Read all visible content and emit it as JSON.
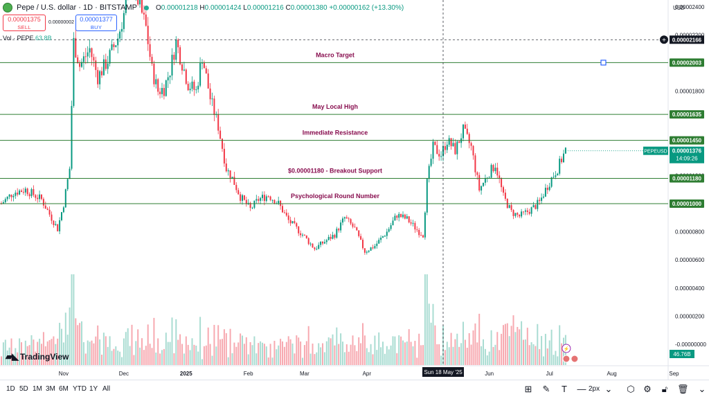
{
  "header": {
    "title": "Pepe / U.S. dollar · 1D · BITSTAMP",
    "ohlc": {
      "o_label": "O",
      "o": "0.00001218",
      "h_label": "H",
      "h": "0.00001424",
      "l_label": "L",
      "l": "0.00001216",
      "c_label": "C",
      "c": "0.00001380",
      "change": "+0.00000162 (+13.30%)"
    }
  },
  "trade": {
    "sell_price": "0.00001375",
    "sell_label": "SELL",
    "spread": "0.00000002",
    "buy_price": "0.00001377",
    "buy_label": "BUY"
  },
  "volume": {
    "label": "Vol · PEPE",
    "value": "63.8B",
    "scale_label": "46.76B"
  },
  "currency": "USD",
  "price_axis": [
    {
      "price": 2.6e-05,
      "label": "0.00002600"
    },
    {
      "price": 2.4e-05,
      "label": "0.00002400"
    },
    {
      "price": 2.2e-05,
      "label": "0.00002200"
    },
    {
      "price": 1.8e-05,
      "label": "0.00001800"
    },
    {
      "price": 1.2e-05,
      "label": "0.00001200"
    },
    {
      "price": 8e-06,
      "label": "0.00000800"
    },
    {
      "price": 6e-06,
      "label": "0.00000600"
    },
    {
      "price": 4e-06,
      "label": "0.00000400"
    },
    {
      "price": 2e-06,
      "label": "0.00000200"
    },
    {
      "price": 0.0,
      "label": "-0.00000000"
    }
  ],
  "levels": [
    {
      "price": 2.003e-05,
      "label": "0.00002003",
      "annotation": "Macro Target"
    },
    {
      "price": 1.635e-05,
      "label": "0.00001635",
      "annotation": "May Local High"
    },
    {
      "price": 1.45e-05,
      "label": "0.00001450",
      "annotation": "Immediate Resistance"
    },
    {
      "price": 1.18e-05,
      "label": "0.00001180",
      "annotation": "$0.00001180 - Breakout Support"
    },
    {
      "price": 1e-05,
      "label": "0.00001000",
      "annotation": "Psychological Round Number"
    }
  ],
  "crosshair": {
    "price": 2.166e-05,
    "label": "0.00002166",
    "date_label": "Sun 18 May '25"
  },
  "last_price": {
    "symbol": "PEPEUSD",
    "price": 1.376e-05,
    "label": "0.00001376",
    "countdown": "14:09:26"
  },
  "time_axis": [
    {
      "label": "Nov",
      "day": 31
    },
    {
      "label": "Dec",
      "day": 61
    },
    {
      "label": "2025",
      "day": 92
    },
    {
      "label": "Feb",
      "day": 123
    },
    {
      "label": "Mar",
      "day": 151
    },
    {
      "label": "Apr",
      "day": 182
    },
    {
      "label": "May",
      "day": 212
    },
    {
      "label": "Jun",
      "day": 243
    },
    {
      "label": "Jul",
      "day": 273
    },
    {
      "label": "Aug",
      "day": 304
    },
    {
      "label": "Sep",
      "day": 335
    }
  ],
  "timeframes": [
    "1D",
    "5D",
    "1M",
    "3M",
    "6M",
    "YTD",
    "1Y",
    "All"
  ],
  "toolbar": {
    "width_label": "2px"
  },
  "brand": "TradingView",
  "colors": {
    "up": "#089981",
    "down": "#f23645",
    "vol_up": "#a9dcd2",
    "vol_down": "#f7a9b0",
    "level": "#2e7d32",
    "annotation": "#880e4f",
    "crosshair": "#131722",
    "anchor": "#2962ff"
  },
  "chart_data": {
    "type": "candlestick",
    "x_unit": "day-index",
    "y_unit": "USD",
    "waypoints": [
      [
        0,
        1e-05
      ],
      [
        6,
        1.08e-05
      ],
      [
        12,
        1.1e-05
      ],
      [
        20,
        1.03e-05
      ],
      [
        28,
        8.2e-06
      ],
      [
        31,
        1e-05
      ],
      [
        34,
        1.25e-05
      ],
      [
        36,
        2.15e-05
      ],
      [
        39,
        1.98e-05
      ],
      [
        44,
        2.1e-05
      ],
      [
        48,
        1.9e-05
      ],
      [
        53,
        2.02e-05
      ],
      [
        58,
        2.18e-05
      ],
      [
        61,
        2.35e-05
      ],
      [
        64,
        2.62e-05
      ],
      [
        68,
        2.45e-05
      ],
      [
        72,
        2.25e-05
      ],
      [
        75,
        1.95e-05
      ],
      [
        78,
        1.8e-05
      ],
      [
        81,
        1.82e-05
      ],
      [
        84,
        1.95e-05
      ],
      [
        87,
        2.15e-05
      ],
      [
        90,
        2e-05
      ],
      [
        93,
        1.85e-05
      ],
      [
        97,
        1.8e-05
      ],
      [
        100,
        2.05e-05
      ],
      [
        104,
        1.75e-05
      ],
      [
        108,
        1.55e-05
      ],
      [
        112,
        1.25e-05
      ],
      [
        115,
        1.18e-05
      ],
      [
        119,
        1.05e-05
      ],
      [
        124,
        9.6e-06
      ],
      [
        128,
        1.03e-05
      ],
      [
        133,
        1.06e-05
      ],
      [
        138,
        1e-05
      ],
      [
        143,
        8.8e-06
      ],
      [
        150,
        7.8e-06
      ],
      [
        156,
        6.8e-06
      ],
      [
        160,
        7.2e-06
      ],
      [
        166,
        7.8e-06
      ],
      [
        171,
        9e-06
      ],
      [
        176,
        8.2e-06
      ],
      [
        181,
        6.6e-06
      ],
      [
        186,
        7e-06
      ],
      [
        192,
        8e-06
      ],
      [
        197,
        9.2e-06
      ],
      [
        202,
        8.9e-06
      ],
      [
        208,
        8e-06
      ],
      [
        210,
        7.8e-06
      ],
      [
        212,
        1.15e-05
      ],
      [
        215,
        1.4e-05
      ],
      [
        219,
        1.35e-05
      ],
      [
        222,
        1.45e-05
      ],
      [
        226,
        1.38e-05
      ],
      [
        230,
        1.52e-05
      ],
      [
        234,
        1.4e-05
      ],
      [
        238,
        1.1e-05
      ],
      [
        242,
        1.2e-05
      ],
      [
        246,
        1.28e-05
      ],
      [
        250,
        1.05e-05
      ],
      [
        254,
        9.4e-06
      ],
      [
        258,
        9.1e-06
      ],
      [
        264,
        9.6e-06
      ],
      [
        268,
        1.01e-05
      ],
      [
        271,
        1.1e-05
      ],
      [
        274,
        1.18e-05
      ],
      [
        277,
        1.25e-05
      ],
      [
        281,
        1.38e-05
      ]
    ],
    "volume_range": [
      0,
      46760000000
    ]
  }
}
